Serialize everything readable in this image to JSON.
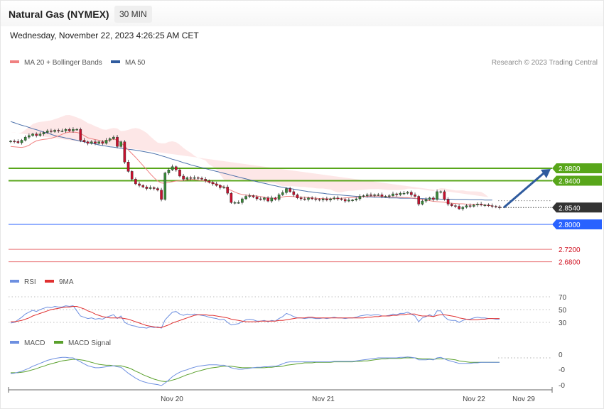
{
  "header": {
    "title": "Natural Gas (NYMEX)",
    "timeframe": "30 MIN",
    "date": "Wednesday, November 22, 2023 4:26:25 AM CET"
  },
  "legend": {
    "ma20": "MA 20 + Bollinger Bands",
    "ma50": "MA 50",
    "credit": "Research © 2023 Trading Central",
    "rsi": "RSI",
    "rsi_ma": "9MA",
    "macd": "MACD",
    "macd_signal": "MACD Signal"
  },
  "colors": {
    "ma20": "#f08080",
    "ma50": "#2f5b9e",
    "bands_fill": "#fde4e4",
    "resistance": "#58a61a",
    "support_blue": "#2962ff",
    "support_red": "#e0393e",
    "current": "#333333",
    "candle_up": "#3a8a3a",
    "candle_down": "#c8102e",
    "rsi": "#6d8fe0",
    "rsi_ma": "#e03030",
    "macd": "#6d8fe0",
    "macd_signal": "#5aa02c",
    "arrow": "#2f5b9e"
  },
  "chart_data": [
    {
      "type": "candlestick",
      "levels": [
        {
          "label": "2.9800",
          "value": 2.98,
          "kind": "resistance"
        },
        {
          "label": "2.9400",
          "value": 2.94,
          "kind": "resistance"
        },
        {
          "label": "2.8540",
          "value": 2.854,
          "kind": "current"
        },
        {
          "label": "2.8000",
          "value": 2.8,
          "kind": "support"
        },
        {
          "label": "2.7200",
          "value": 2.72,
          "kind": "support"
        },
        {
          "label": "2.6800",
          "value": 2.68,
          "kind": "support"
        }
      ],
      "forecast_arrow": {
        "from": 2.854,
        "to": 2.98,
        "direction": "up"
      },
      "x_tick_labels": [
        "Nov 20",
        "Nov 21",
        "Nov 22",
        "Nov 29"
      ],
      "close": [
        3.067,
        3.066,
        3.062,
        3.07,
        3.08,
        3.085,
        3.09,
        3.085,
        3.09,
        3.095,
        3.1,
        3.098,
        3.102,
        3.1,
        3.1,
        3.105,
        3.1,
        3.105,
        3.105,
        3.07,
        3.065,
        3.06,
        3.065,
        3.06,
        3.065,
        3.06,
        3.07,
        3.075,
        3.08,
        3.05,
        3.065,
        3.0,
        2.97,
        2.945,
        2.93,
        2.925,
        2.92,
        2.915,
        2.918,
        2.915,
        2.91,
        2.88,
        2.965,
        2.975,
        2.985,
        2.975,
        2.955,
        2.945,
        2.95,
        2.948,
        2.95,
        2.948,
        2.945,
        2.94,
        2.935,
        2.93,
        2.925,
        2.918,
        2.92,
        2.9,
        2.87,
        2.87,
        2.87,
        2.882,
        2.89,
        2.892,
        2.888,
        2.882,
        2.88,
        2.885,
        2.875,
        2.885,
        2.88,
        2.895,
        2.902,
        2.915,
        2.905,
        2.895,
        2.885,
        2.882,
        2.88,
        2.885,
        2.882,
        2.88,
        2.878,
        2.882,
        2.878,
        2.882,
        2.885,
        2.882,
        2.88,
        2.875,
        2.878,
        2.878,
        2.882,
        2.89,
        2.892,
        2.895,
        2.893,
        2.895,
        2.895,
        2.89,
        2.89,
        2.892,
        2.898,
        2.895,
        2.9,
        2.9,
        2.903,
        2.895,
        2.89,
        2.865,
        2.875,
        2.88,
        2.885,
        2.88,
        2.905,
        2.905,
        2.88,
        2.865,
        2.86,
        2.858,
        2.85,
        2.855,
        2.86,
        2.858,
        2.862,
        2.865,
        2.862,
        2.862,
        2.86,
        2.858,
        2.856,
        2.854
      ],
      "ma20": [
        3.05,
        3.049,
        3.048,
        3.047,
        3.049,
        3.054,
        3.062,
        3.068,
        3.071,
        3.073,
        3.074,
        3.076,
        3.08,
        3.084,
        3.089,
        3.094,
        3.096,
        3.096,
        3.095,
        3.092,
        3.085,
        3.078,
        3.075,
        3.072,
        3.07,
        3.067,
        3.067,
        3.071,
        3.074,
        3.07,
        3.062,
        3.051,
        3.039,
        3.027,
        3.015,
        3.002,
        2.989,
        2.976,
        2.962,
        2.95,
        2.939,
        2.933,
        2.932,
        2.935,
        2.937,
        2.939,
        2.94,
        2.941,
        2.943,
        2.945,
        2.944,
        2.942,
        2.941,
        2.939,
        2.935,
        2.932,
        2.929,
        2.925,
        2.92,
        2.914,
        2.909,
        2.904,
        2.899,
        2.896,
        2.894,
        2.893,
        2.892,
        2.891,
        2.889,
        2.887,
        2.885,
        2.884,
        2.884,
        2.886,
        2.888,
        2.89,
        2.89,
        2.889,
        2.888,
        2.887,
        2.887,
        2.886,
        2.885,
        2.884,
        2.883,
        2.883,
        2.882,
        2.882,
        2.883,
        2.883,
        2.884,
        2.885,
        2.886,
        2.886,
        2.887,
        2.888,
        2.889,
        2.89,
        2.891,
        2.891,
        2.891,
        2.89,
        2.889,
        2.888,
        2.888,
        2.888,
        2.887,
        2.886,
        2.886,
        2.885,
        2.884,
        2.882,
        2.88,
        2.878,
        2.876,
        2.874,
        2.873,
        2.872,
        2.871,
        2.869,
        2.868,
        2.867,
        2.866,
        2.866,
        2.865,
        2.864,
        2.864,
        2.864,
        2.863,
        2.862,
        2.861,
        2.86
      ],
      "ma50": [
        3.13,
        3.126,
        3.122,
        3.118,
        3.115,
        3.111,
        3.107,
        3.104,
        3.1,
        3.096,
        3.093,
        3.089,
        3.085,
        3.082,
        3.08,
        3.077,
        3.075,
        3.072,
        3.07,
        3.067,
        3.065,
        3.062,
        3.06,
        3.058,
        3.055,
        3.053,
        3.051,
        3.049,
        3.048,
        3.046,
        3.044,
        3.043,
        3.041,
        3.04,
        3.038,
        3.036,
        3.034,
        3.032,
        3.03,
        3.027,
        3.024,
        3.02,
        3.017,
        3.013,
        3.009,
        3.006,
        3.002,
        2.998,
        2.995,
        2.991,
        2.988,
        2.985,
        2.982,
        2.979,
        2.976,
        2.973,
        2.97,
        2.967,
        2.964,
        2.961,
        2.958,
        2.955,
        2.952,
        2.949,
        2.946,
        2.943,
        2.94,
        2.937,
        2.934,
        2.932,
        2.929,
        2.926,
        2.924,
        2.921,
        2.919,
        2.917,
        2.915,
        2.913,
        2.911,
        2.909,
        2.907,
        2.905,
        2.904,
        2.902,
        2.901,
        2.9,
        2.898,
        2.897,
        2.896,
        2.895,
        2.894,
        2.893,
        2.892,
        2.891,
        2.89,
        2.889,
        2.889,
        2.888,
        2.888,
        2.887,
        2.887,
        2.886,
        2.886,
        2.885,
        2.885,
        2.885,
        2.884,
        2.884,
        2.884,
        2.884,
        2.883,
        2.883,
        2.883,
        2.882,
        2.882,
        2.882,
        2.882,
        2.881,
        2.881,
        2.881,
        2.881,
        2.88,
        2.88,
        2.88,
        2.88,
        2.879,
        2.879,
        2.879,
        2.879,
        2.878,
        2.878,
        2.878
      ]
    },
    {
      "type": "line",
      "name": "RSI",
      "y_tick_labels": [
        "70",
        "50",
        "30"
      ],
      "rsi": [
        29,
        30,
        34,
        38,
        43,
        46,
        49,
        47,
        50,
        52,
        54,
        53,
        55,
        54,
        54,
        56,
        55,
        56,
        48,
        40,
        38,
        36,
        37,
        35,
        36,
        35,
        38,
        40,
        42,
        36,
        40,
        30,
        27,
        25,
        24,
        22,
        22,
        21,
        23,
        22,
        23,
        21,
        34,
        40,
        46,
        47,
        43,
        41,
        43,
        42,
        43,
        42,
        41,
        40,
        38,
        37,
        36,
        34,
        35,
        30,
        26,
        27,
        28,
        31,
        34,
        35,
        34,
        32,
        32,
        33,
        31,
        33,
        32,
        36,
        39,
        44,
        42,
        39,
        37,
        37,
        36,
        37,
        37,
        36,
        36,
        37,
        36,
        37,
        38,
        37,
        37,
        36,
        37,
        37,
        38,
        40,
        41,
        42,
        41,
        42,
        42,
        40,
        40,
        41,
        43,
        42,
        44,
        44,
        46,
        43,
        40,
        31,
        37,
        39,
        42,
        39,
        48,
        48,
        39,
        34,
        33,
        33,
        30,
        33,
        35,
        35,
        37,
        38,
        37,
        37,
        36,
        36,
        35,
        35
      ],
      "ma9": [
        31,
        31,
        32,
        33,
        35,
        37,
        40,
        42,
        44,
        46,
        48,
        50,
        51,
        52,
        53,
        54,
        54,
        55,
        55,
        53,
        51,
        48,
        46,
        43,
        41,
        39,
        38,
        37,
        37,
        37,
        37,
        36,
        35,
        33,
        31,
        29,
        27,
        25,
        24,
        23,
        22,
        22,
        24,
        26,
        29,
        31,
        33,
        35,
        37,
        39,
        41,
        42,
        42,
        42,
        41,
        41,
        40,
        39,
        38,
        37,
        35,
        34,
        33,
        32,
        31,
        31,
        31,
        31,
        32,
        32,
        32,
        32,
        32,
        33,
        33,
        34,
        35,
        36,
        37,
        37,
        37,
        38,
        38,
        37,
        37,
        37,
        37,
        37,
        37,
        37,
        37,
        37,
        37,
        37,
        37,
        37,
        37,
        38,
        38,
        39,
        39,
        40,
        40,
        40,
        41,
        41,
        42,
        42,
        43,
        43,
        43,
        41,
        40,
        40,
        40,
        39,
        41,
        42,
        42,
        41,
        40,
        39,
        37,
        36,
        35,
        34,
        34,
        34,
        35,
        35,
        36,
        36,
        36,
        36
      ]
    },
    {
      "type": "line",
      "name": "MACD",
      "y_tick_labels": [
        "0",
        "-0",
        "-0"
      ],
      "macd": [
        -0.032,
        -0.031,
        -0.029,
        -0.027,
        -0.024,
        -0.021,
        -0.017,
        -0.014,
        -0.011,
        -0.008,
        -0.005,
        -0.003,
        -0.001,
        0.0,
        0.001,
        0.001,
        0.0,
        0.0,
        -0.004,
        -0.008,
        -0.012,
        -0.016,
        -0.018,
        -0.02,
        -0.02,
        -0.019,
        -0.018,
        -0.017,
        -0.016,
        -0.018,
        -0.019,
        -0.025,
        -0.031,
        -0.036,
        -0.041,
        -0.045,
        -0.048,
        -0.05,
        -0.052,
        -0.053,
        -0.054,
        -0.056,
        -0.051,
        -0.045,
        -0.038,
        -0.033,
        -0.029,
        -0.026,
        -0.024,
        -0.021,
        -0.019,
        -0.017,
        -0.016,
        -0.015,
        -0.014,
        -0.014,
        -0.014,
        -0.015,
        -0.015,
        -0.017,
        -0.02,
        -0.022,
        -0.023,
        -0.023,
        -0.022,
        -0.021,
        -0.02,
        -0.019,
        -0.019,
        -0.018,
        -0.018,
        -0.017,
        -0.017,
        -0.015,
        -0.012,
        -0.009,
        -0.008,
        -0.008,
        -0.008,
        -0.008,
        -0.008,
        -0.008,
        -0.008,
        -0.008,
        -0.008,
        -0.008,
        -0.008,
        -0.008,
        -0.007,
        -0.007,
        -0.007,
        -0.007,
        -0.007,
        -0.007,
        -0.006,
        -0.005,
        -0.004,
        -0.003,
        -0.002,
        -0.001,
        0.0,
        0.0,
        0.0,
        0.0,
        0.0,
        0.0,
        0.001,
        0.001,
        0.002,
        0.001,
        0.0,
        -0.004,
        -0.004,
        -0.004,
        -0.003,
        -0.004,
        0.0,
        0.001,
        -0.002,
        -0.005,
        -0.007,
        -0.009,
        -0.011,
        -0.011,
        -0.011,
        -0.011,
        -0.01,
        -0.01,
        -0.009,
        -0.009,
        -0.009,
        -0.009,
        -0.009,
        -0.009
      ],
      "signal": [
        -0.03,
        -0.03,
        -0.03,
        -0.029,
        -0.028,
        -0.026,
        -0.024,
        -0.022,
        -0.019,
        -0.017,
        -0.014,
        -0.012,
        -0.01,
        -0.008,
        -0.006,
        -0.005,
        -0.004,
        -0.003,
        -0.003,
        -0.004,
        -0.005,
        -0.007,
        -0.009,
        -0.011,
        -0.013,
        -0.014,
        -0.015,
        -0.015,
        -0.016,
        -0.016,
        -0.016,
        -0.018,
        -0.02,
        -0.023,
        -0.027,
        -0.03,
        -0.034,
        -0.037,
        -0.04,
        -0.043,
        -0.045,
        -0.047,
        -0.048,
        -0.047,
        -0.045,
        -0.043,
        -0.04,
        -0.037,
        -0.034,
        -0.032,
        -0.029,
        -0.027,
        -0.025,
        -0.023,
        -0.021,
        -0.02,
        -0.019,
        -0.018,
        -0.017,
        -0.017,
        -0.017,
        -0.018,
        -0.019,
        -0.02,
        -0.02,
        -0.02,
        -0.02,
        -0.02,
        -0.02,
        -0.02,
        -0.019,
        -0.019,
        -0.018,
        -0.018,
        -0.017,
        -0.015,
        -0.014,
        -0.013,
        -0.012,
        -0.011,
        -0.01,
        -0.01,
        -0.01,
        -0.009,
        -0.009,
        -0.009,
        -0.009,
        -0.009,
        -0.008,
        -0.008,
        -0.008,
        -0.008,
        -0.008,
        -0.008,
        -0.007,
        -0.007,
        -0.006,
        -0.006,
        -0.005,
        -0.004,
        -0.003,
        -0.002,
        -0.002,
        -0.001,
        -0.001,
        -0.001,
        -0.001,
        0.0,
        0.0,
        0.0,
        0.0,
        -0.001,
        -0.002,
        -0.002,
        -0.002,
        -0.003,
        -0.002,
        -0.002,
        -0.002,
        -0.002,
        -0.003,
        -0.004,
        -0.006,
        -0.007,
        -0.008,
        -0.009,
        -0.009,
        -0.009,
        -0.009,
        -0.009,
        -0.009,
        -0.009,
        -0.009,
        -0.009
      ]
    }
  ]
}
